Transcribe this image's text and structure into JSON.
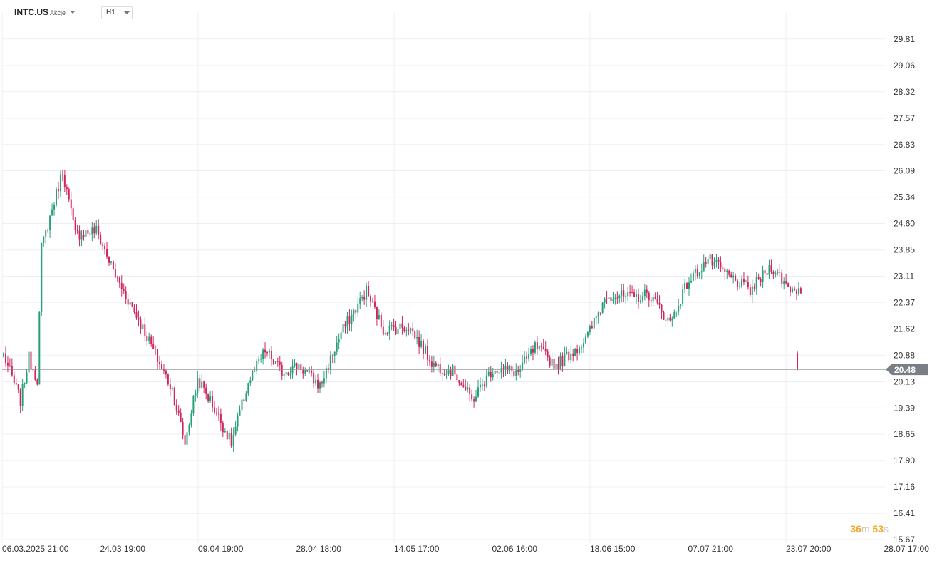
{
  "toolbar": {
    "symbol": "INTC.US",
    "instrument_type": "Akcje",
    "timeframe": "H1"
  },
  "timer": {
    "minutes": "36",
    "minutes_unit": "m",
    "seconds": "53",
    "seconds_unit": "s"
  },
  "colors": {
    "up": "#26a07a",
    "down": "#d0245a",
    "price_line": "#888888",
    "price_tag": "#7a7f85",
    "grid": "#efefef",
    "timer": "#f5a623"
  },
  "chart_data": {
    "type": "candlestick",
    "ylim": [
      15.67,
      30.3
    ],
    "y_ticks": [
      "29.81",
      "29.06",
      "28.32",
      "27.57",
      "26.83",
      "26.09",
      "25.34",
      "24.60",
      "23.85",
      "23.11",
      "22.37",
      "21.62",
      "20.88",
      "20.13",
      "19.39",
      "18.65",
      "17.90",
      "17.16",
      "16.41",
      "15.67"
    ],
    "x_ticks": [
      "06.03.2025  21:00",
      "24.03  19:00",
      "09.04  19:00",
      "28.04  18:00",
      "14.05  17:00",
      "02.06  16:00",
      "18.06  15:00",
      "07.07  21:00",
      "23.07  20:00",
      "28.07  17:00"
    ],
    "current_price": 20.48,
    "current_price_label": "20.48",
    "trend_close_waypoints": [
      [
        0,
        20.9
      ],
      [
        8,
        19.6
      ],
      [
        12,
        20.8
      ],
      [
        16,
        20.2
      ],
      [
        18,
        23.9
      ],
      [
        28,
        26.1
      ],
      [
        34,
        24.3
      ],
      [
        44,
        24.4
      ],
      [
        54,
        23.0
      ],
      [
        64,
        21.9
      ],
      [
        72,
        20.9
      ],
      [
        80,
        19.9
      ],
      [
        86,
        18.4
      ],
      [
        92,
        20.2
      ],
      [
        98,
        19.6
      ],
      [
        108,
        18.4
      ],
      [
        116,
        20.1
      ],
      [
        124,
        21.0
      ],
      [
        132,
        20.4
      ],
      [
        140,
        20.6
      ],
      [
        150,
        20.0
      ],
      [
        160,
        21.5
      ],
      [
        172,
        22.7
      ],
      [
        180,
        21.6
      ],
      [
        192,
        21.7
      ],
      [
        204,
        20.6
      ],
      [
        214,
        20.4
      ],
      [
        222,
        19.6
      ],
      [
        232,
        20.5
      ],
      [
        244,
        20.4
      ],
      [
        252,
        21.1
      ],
      [
        262,
        20.6
      ],
      [
        276,
        21.3
      ],
      [
        286,
        22.6
      ],
      [
        298,
        22.5
      ],
      [
        306,
        22.6
      ],
      [
        316,
        21.8
      ],
      [
        324,
        22.9
      ],
      [
        334,
        23.6
      ],
      [
        344,
        23.1
      ],
      [
        354,
        22.7
      ],
      [
        364,
        23.4
      ],
      [
        372,
        22.8
      ],
      [
        378,
        22.7
      ]
    ],
    "last_candle": {
      "open": 20.95,
      "high": 21.0,
      "low": 20.45,
      "close": 20.48
    }
  }
}
